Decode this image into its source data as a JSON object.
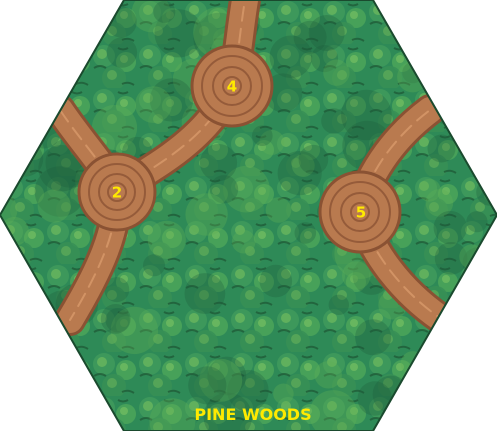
{
  "tile": {
    "title": "PINE WOODS",
    "colors": {
      "forest_base": "#2e8a57",
      "forest_dark": "#1e5e3a",
      "forest_light": "#5fae55",
      "path": "#b97a4f",
      "path_dark": "#8a5233",
      "path_light": "#d89a6a",
      "label": "#ffea00"
    },
    "clearings": [
      {
        "number": "2"
      },
      {
        "number": "4"
      },
      {
        "number": "5"
      }
    ]
  }
}
